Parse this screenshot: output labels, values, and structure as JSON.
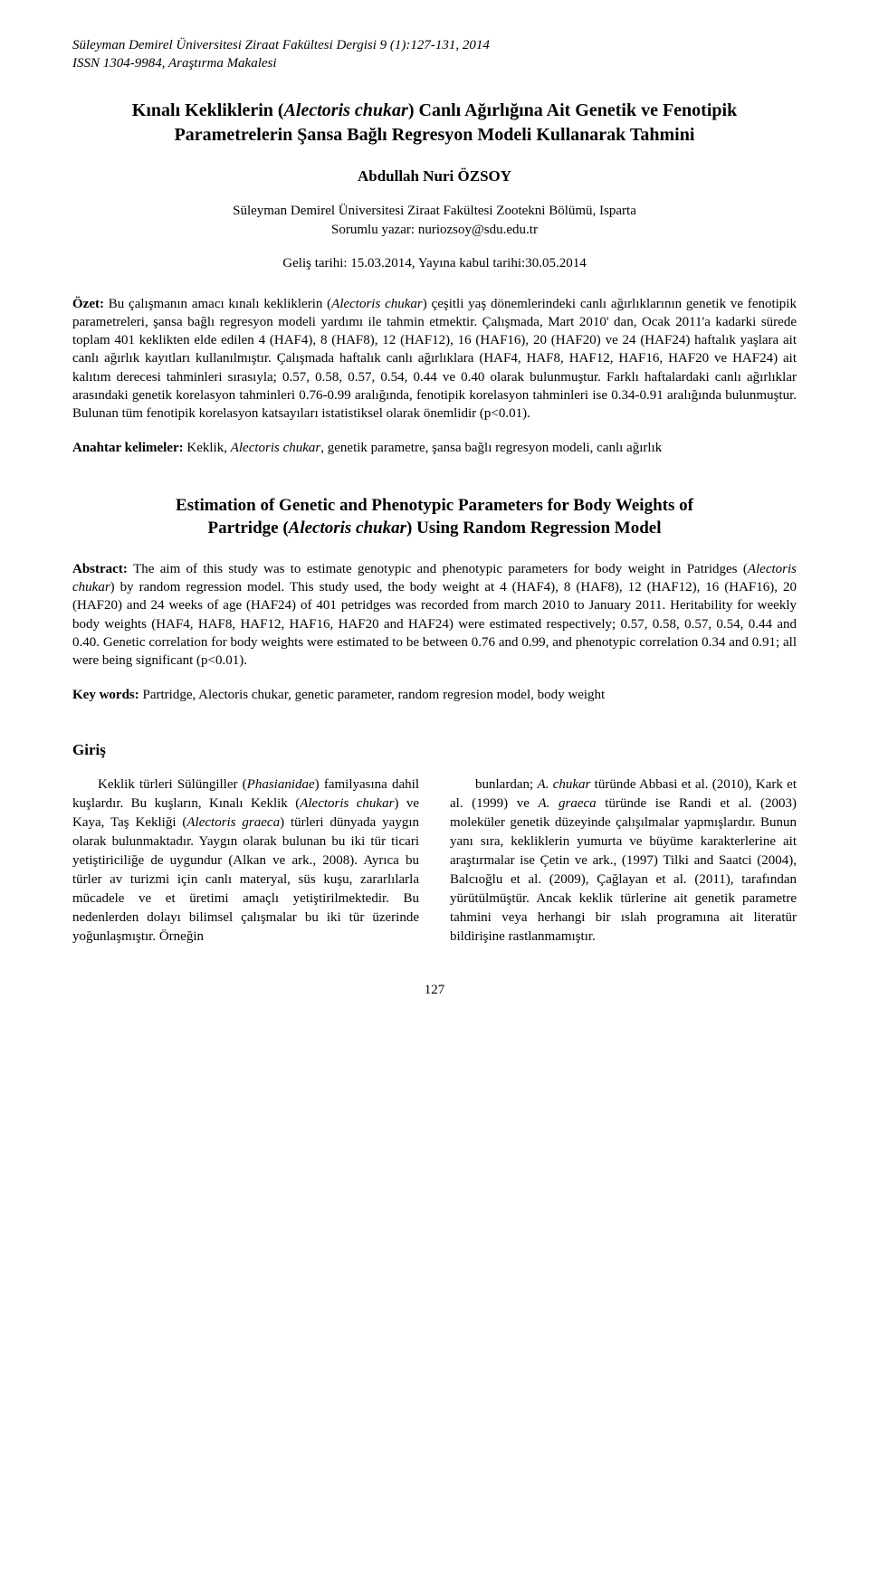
{
  "journal": {
    "line1": "Süleyman Demirel Üniversitesi Ziraat Fakültesi Dergisi 9 (1):127-131, 2014",
    "line2": "ISSN 1304-9984, Araştırma Makalesi"
  },
  "titles": {
    "turkish": "Kınalı Kekliklerin (Alectoris chukar) Canlı Ağırlığına Ait Genetik ve Fenotipik Parametrelerin Şansa Bağlı Regresyon Modeli Kullanarak Tahmini",
    "english_l1": "Estimation of Genetic and Phenotypic Parameters for Body Weights of",
    "english_l2_a": "Partridge (",
    "english_l2_i": "Alectoris chukar",
    "english_l2_b": ") Using Random Regression Model"
  },
  "author": "Abdullah Nuri ÖZSOY",
  "affiliation": {
    "line1": "Süleyman Demirel Üniversitesi Ziraat Fakültesi Zootekni Bölümü, Isparta",
    "line2": "Sorumlu yazar: nuriozsoy@sdu.edu.tr"
  },
  "dates": "Geliş tarihi: 15.03.2014, Yayına kabul tarihi:30.05.2014",
  "abstract_tr": {
    "label": "Özet: ",
    "t1": "Bu çalışmanın amacı kınalı kekliklerin (",
    "i1": "Alectoris chukar",
    "t2": ") çeşitli yaş dönemlerindeki canlı ağırlıklarının genetik ve fenotipik parametreleri, şansa bağlı regresyon modeli yardımı ile tahmin etmektir. Çalışmada, Mart 2010' dan, Ocak 2011'a kadarki sürede toplam 401 keklikten elde edilen 4 (HAF4), 8 (HAF8), 12 (HAF12), 16 (HAF16), 20 (HAF20) ve 24 (HAF24) haftalık yaşlara ait canlı ağırlık kayıtları kullanılmıştır. Çalışmada haftalık canlı ağırlıklara (HAF4, HAF8, HAF12, HAF16, HAF20 ve HAF24) ait kalıtım derecesi tahminleri sırasıyla; 0.57, 0.58, 0.57, 0.54, 0.44 ve 0.40 olarak bulunmuştur. Farklı haftalardaki canlı ağırlıklar arasındaki genetik korelasyon tahminleri 0.76-0.99 aralığında, fenotipik korelasyon tahminleri ise 0.34-0.91 aralığında bulunmuştur. Bulunan tüm fenotipik korelasyon katsayıları istatistiksel olarak önemlidir (p<0.01)."
  },
  "keywords_tr": {
    "label": "Anahtar kelimeler: ",
    "t1": "Keklik, ",
    "i1": "Alectoris chukar",
    "t2": ", genetik parametre, şansa bağlı regresyon modeli, canlı ağırlık"
  },
  "abstract_en": {
    "label": "Abstract: ",
    "t1": "The aim of this study was to estimate genotypic and phenotypic parameters for body weight in Patridges (",
    "i1": "Alectoris chukar",
    "t2": ") by random regression model. This study used, the body weight at 4 (HAF4), 8 (HAF8), 12 (HAF12), 16 (HAF16), 20 (HAF20) and 24 weeks of age (HAF24) of 401 petridges was recorded from march 2010 to January 2011. Heritability for weekly body weights (HAF4, HAF8, HAF12, HAF16, HAF20 and HAF24) were estimated respectively; 0.57, 0.58, 0.57, 0.54, 0.44 and 0.40. Genetic correlation for body weights were estimated to be between 0.76 and 0.99, and phenotypic correlation 0.34 and 0.91; all were being significant (p<0.01)."
  },
  "keywords_en": {
    "label": "Key words: ",
    "text": "Partridge, Alectoris chukar, genetic parameter, random regresion model, body weight"
  },
  "section_heading": "Giriş",
  "body": {
    "left": {
      "t1": "Keklik türleri Sülüngiller (",
      "i1": "Phasianidae",
      "t2": ") familyasına dahil kuşlardır. Bu kuşların, Kınalı Keklik (",
      "i2": "Alectoris chukar",
      "t3": ") ve Kaya, Taş Kekliği (",
      "i3": "Alectoris graeca",
      "t4": ") türleri dünyada yaygın olarak bulunmaktadır. Yaygın olarak bulunan bu iki tür ticari yetiştiriciliğe de uygundur (Alkan ve ark., 2008). Ayrıca bu türler av turizmi için canlı materyal, süs kuşu, zararlılarla mücadele ve et üretimi amaçlı yetiştirilmektedir. Bu nedenlerden dolayı bilimsel çalışmalar bu iki tür üzerinde yoğunlaşmıştır. Örneğin"
    },
    "right": {
      "t1": "bunlardan; ",
      "i1": "A. chukar",
      "t2": " türünde Abbasi et al. (2010), Kark et al. (1999) ve ",
      "i2": "A. graeca",
      "t3": " türünde ise Randi et al. (2003) moleküler genetik düzeyinde çalışılmalar yapmışlardır. Bunun yanı sıra, kekliklerin yumurta ve büyüme karakterlerine ait araştırmalar ise Çetin ve ark., (1997) Tilki and Saatci (2004), Balcıoğlu et al. (2009), Çağlayan et al. (2011), tarafından yürütülmüştür. Ancak keklik türlerine ait genetik parametre tahmini veya herhangi bir ıslah programına ait literatür bildirişine rastlanmamıştır."
    }
  },
  "page_number": "127"
}
